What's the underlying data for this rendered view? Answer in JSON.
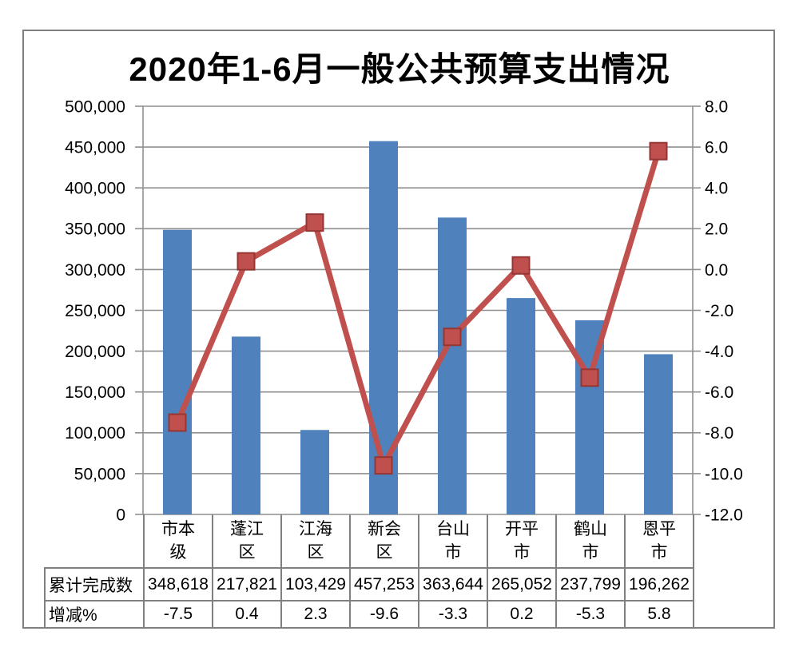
{
  "title": "2020年1-6月一般公共预算支出情况",
  "chart_data": {
    "type": "combo",
    "categories": [
      "市本级",
      "蓬江区",
      "江海区",
      "新会区",
      "台山市",
      "开平市",
      "鹤山市",
      "恩平市"
    ],
    "series": [
      {
        "name": "累计完成数",
        "type": "bar",
        "axis": "left",
        "color": "#4F81BD",
        "values": [
          348618,
          217821,
          103429,
          457253,
          363644,
          265052,
          237799,
          196262
        ]
      },
      {
        "name": "增减%",
        "type": "line",
        "axis": "right",
        "color": "#C0504D",
        "marker": "square",
        "marker_border": "#943634",
        "values": [
          -7.5,
          0.4,
          2.3,
          -9.6,
          -3.3,
          0.2,
          -5.3,
          5.8
        ]
      }
    ],
    "left_axis": {
      "min": 0,
      "max": 500000,
      "step": 50000,
      "format": "thousands"
    },
    "right_axis": {
      "min": -12.0,
      "max": 8.0,
      "step": 2.0,
      "format": "one_decimal"
    },
    "grid": true,
    "legend_position": "none",
    "data_table_shown": true
  },
  "table": {
    "row_labels": [
      "累计完成数",
      "增减%"
    ],
    "rows": [
      [
        "348,618",
        "217,821",
        "103,429",
        "457,253",
        "363,644",
        "265,052",
        "237,799",
        "196,262"
      ],
      [
        "-7.5",
        "0.4",
        "2.3",
        "-9.6",
        "-3.3",
        "0.2",
        "-5.3",
        "5.8"
      ]
    ]
  },
  "colors": {
    "bar": "#4F81BD",
    "line": "#C0504D",
    "marker_border": "#943634",
    "grid": "#8F8F8F",
    "frame": "#808080",
    "text": "#000000",
    "background": "#FFFFFF"
  }
}
